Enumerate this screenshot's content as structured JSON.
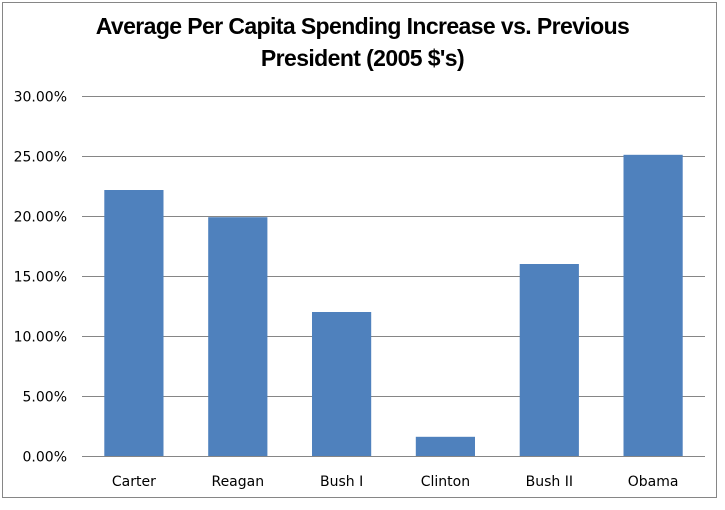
{
  "chart_data": {
    "type": "bar",
    "title_lines": [
      "Average Per Capita Spending Increase vs. Previous",
      "President (2005 $'s)"
    ],
    "title": "Average Per Capita Spending Increase vs. Previous President (2005 $'s)",
    "xlabel": "",
    "ylabel": "",
    "categories": [
      "Carter",
      "Reagan",
      "Bush I",
      "Clinton",
      "Bush II",
      "Obama"
    ],
    "values": [
      0.2217,
      0.199,
      0.12,
      0.016,
      0.16,
      0.251
    ],
    "ylim": [
      0,
      0.3
    ],
    "yticks": [
      0,
      0.05,
      0.1,
      0.15,
      0.2,
      0.25,
      0.3
    ],
    "ytick_labels": [
      "0.00%",
      "5.00%",
      "10.00%",
      "15.00%",
      "20.00%",
      "25.00%",
      "30.00%"
    ],
    "grid": true,
    "legend": "none",
    "colors": {
      "bar": "#4F81BD",
      "grid": "#868686",
      "border": "#868686"
    }
  }
}
